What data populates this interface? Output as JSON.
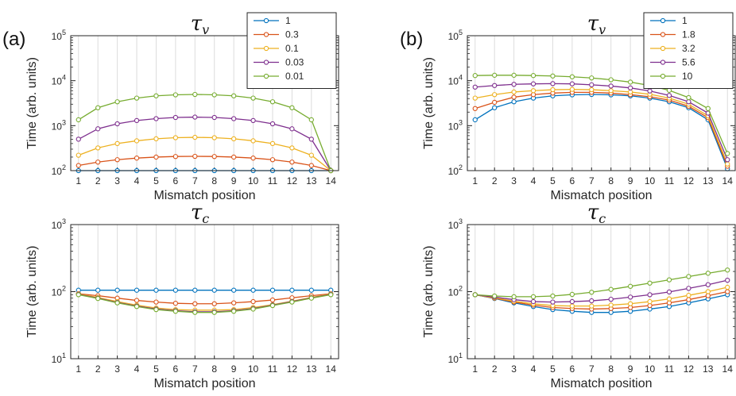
{
  "panel_labels": [
    "(a)",
    "(b)"
  ],
  "chart_data": [
    {
      "id": "a-top",
      "type": "line",
      "title": "τv",
      "title_base": "τ",
      "title_sub": "v",
      "xlabel": "Mismatch position",
      "ylabel": "Time (arb. units)",
      "yscale": "log",
      "ylim": [
        100,
        100000
      ],
      "yticks": [
        100,
        1000,
        10000,
        100000
      ],
      "ytick_labels": [
        {
          "base": "10",
          "exp": "2"
        },
        {
          "base": "10",
          "exp": "3"
        },
        {
          "base": "10",
          "exp": "4"
        },
        {
          "base": "10",
          "exp": "5"
        }
      ],
      "x": [
        1,
        2,
        3,
        4,
        5,
        6,
        7,
        8,
        9,
        10,
        11,
        12,
        13,
        14
      ],
      "xlim": [
        0.6,
        14.4
      ],
      "grid": "vertical",
      "legend": "top-right",
      "series": [
        {
          "name": "1",
          "color": "#0072BD",
          "values": [
            100,
            100,
            100,
            100,
            100,
            100,
            100,
            100,
            100,
            100,
            100,
            100,
            100,
            100
          ]
        },
        {
          "name": "0.3",
          "color": "#D95319",
          "values": [
            130,
            155,
            175,
            190,
            200,
            206,
            208,
            206,
            200,
            190,
            175,
            155,
            130,
            100
          ]
        },
        {
          "name": "0.1",
          "color": "#EDB120",
          "values": [
            220,
            320,
            400,
            460,
            510,
            540,
            550,
            540,
            510,
            460,
            400,
            320,
            220,
            100
          ]
        },
        {
          "name": "0.03",
          "color": "#7E2F8E",
          "values": [
            500,
            850,
            1100,
            1300,
            1430,
            1520,
            1550,
            1520,
            1430,
            1300,
            1100,
            850,
            500,
            100
          ]
        },
        {
          "name": "0.01",
          "color": "#77AC30",
          "values": [
            1350,
            2500,
            3400,
            4100,
            4600,
            4850,
            4950,
            4850,
            4600,
            4100,
            3400,
            2500,
            1350,
            100
          ]
        }
      ]
    },
    {
      "id": "b-top",
      "type": "line",
      "title": "τv",
      "title_base": "τ",
      "title_sub": "v",
      "xlabel": "Mismatch position",
      "ylabel": "Time (arb. units)",
      "yscale": "log",
      "ylim": [
        100,
        100000
      ],
      "yticks": [
        100,
        1000,
        10000,
        100000
      ],
      "ytick_labels": [
        {
          "base": "10",
          "exp": "2"
        },
        {
          "base": "10",
          "exp": "3"
        },
        {
          "base": "10",
          "exp": "4"
        },
        {
          "base": "10",
          "exp": "5"
        }
      ],
      "x": [
        1,
        2,
        3,
        4,
        5,
        6,
        7,
        8,
        9,
        10,
        11,
        12,
        13,
        14
      ],
      "xlim": [
        0.6,
        14.4
      ],
      "grid": "vertical",
      "legend": "top-right",
      "series": [
        {
          "name": "1",
          "color": "#0072BD",
          "values": [
            1350,
            2500,
            3400,
            4100,
            4600,
            4850,
            4950,
            4850,
            4600,
            4100,
            3400,
            2500,
            1350,
            110
          ]
        },
        {
          "name": "1.8",
          "color": "#D95319",
          "values": [
            2400,
            3300,
            4300,
            4900,
            5300,
            5500,
            5500,
            5300,
            4900,
            4400,
            3700,
            2700,
            1500,
            125
          ]
        },
        {
          "name": "3.2",
          "color": "#EDB120",
          "values": [
            4100,
            4900,
            5600,
            6000,
            6300,
            6400,
            6300,
            6000,
            5600,
            5000,
            4100,
            3000,
            1650,
            140
          ]
        },
        {
          "name": "5.6",
          "color": "#7E2F8E",
          "values": [
            7200,
            7800,
            8300,
            8500,
            8600,
            8500,
            8100,
            7600,
            6900,
            5900,
            4700,
            3400,
            1900,
            175
          ]
        },
        {
          "name": "10",
          "color": "#77AC30",
          "values": [
            13000,
            13200,
            13200,
            13000,
            12700,
            12200,
            11500,
            10500,
            9300,
            7800,
            6100,
            4200,
            2400,
            240
          ]
        }
      ]
    },
    {
      "id": "a-bottom",
      "type": "line",
      "title": "τc",
      "title_base": "τ",
      "title_sub": "c",
      "xlabel": "Mismatch position",
      "ylabel": "Time (arb. units)",
      "yscale": "log",
      "ylim": [
        10,
        1000
      ],
      "yticks": [
        10,
        100,
        1000
      ],
      "ytick_labels": [
        {
          "base": "10",
          "exp": "1"
        },
        {
          "base": "10",
          "exp": "2"
        },
        {
          "base": "10",
          "exp": "3"
        }
      ],
      "x": [
        1,
        2,
        3,
        4,
        5,
        6,
        7,
        8,
        9,
        10,
        11,
        12,
        13,
        14
      ],
      "xlim": [
        0.6,
        14.4
      ],
      "grid": "vertical",
      "series": [
        {
          "name": "1",
          "color": "#0072BD",
          "values": [
            105,
            105,
            105,
            105,
            105,
            105,
            105,
            105,
            105,
            105,
            105,
            105,
            105,
            105
          ]
        },
        {
          "name": "0.3",
          "color": "#D95319",
          "values": [
            93,
            87,
            80,
            74,
            70,
            67,
            66,
            66,
            68,
            71,
            75,
            81,
            87,
            93
          ]
        },
        {
          "name": "0.1",
          "color": "#EDB120",
          "values": [
            92,
            82,
            71,
            63,
            57,
            54,
            53,
            53,
            54,
            58,
            64,
            72,
            82,
            92
          ]
        },
        {
          "name": "0.03",
          "color": "#7E2F8E",
          "values": [
            91,
            80,
            69,
            61,
            55,
            52,
            50,
            50,
            52,
            56,
            63,
            71,
            81,
            91
          ]
        },
        {
          "name": "0.01",
          "color": "#77AC30",
          "values": [
            90,
            79,
            68,
            60,
            54,
            51,
            49,
            49,
            51,
            55,
            62,
            70,
            80,
            90
          ]
        }
      ]
    },
    {
      "id": "b-bottom",
      "type": "line",
      "title": "τc",
      "title_base": "τ",
      "title_sub": "c",
      "xlabel": "Mismatch position",
      "ylabel": "Time (arb. units)",
      "yscale": "log",
      "ylim": [
        10,
        1000
      ],
      "yticks": [
        10,
        100,
        1000
      ],
      "ytick_labels": [
        {
          "base": "10",
          "exp": "1"
        },
        {
          "base": "10",
          "exp": "2"
        },
        {
          "base": "10",
          "exp": "3"
        }
      ],
      "x": [
        1,
        2,
        3,
        4,
        5,
        6,
        7,
        8,
        9,
        10,
        11,
        12,
        13,
        14
      ],
      "xlim": [
        0.6,
        14.4
      ],
      "grid": "vertical",
      "series": [
        {
          "name": "1",
          "color": "#0072BD",
          "values": [
            90,
            79,
            68,
            60,
            54,
            51,
            49,
            49,
            51,
            55,
            60,
            68,
            78,
            90
          ]
        },
        {
          "name": "1.8",
          "color": "#D95319",
          "values": [
            90,
            80,
            70,
            63,
            58,
            56,
            55,
            56,
            58,
            62,
            68,
            76,
            87,
            100
          ]
        },
        {
          "name": "3.2",
          "color": "#EDB120",
          "values": [
            90,
            81,
            72,
            66,
            62,
            61,
            61,
            63,
            66,
            71,
            78,
            88,
            100,
            116
          ]
        },
        {
          "name": "5.6",
          "color": "#7E2F8E",
          "values": [
            90,
            83,
            76,
            71,
            70,
            71,
            73,
            77,
            83,
            90,
            99,
            112,
            127,
            148
          ]
        },
        {
          "name": "10",
          "color": "#77AC30",
          "values": [
            90,
            86,
            84,
            84,
            86,
            91,
            98,
            108,
            120,
            134,
            150,
            168,
            188,
            210
          ]
        }
      ]
    }
  ]
}
